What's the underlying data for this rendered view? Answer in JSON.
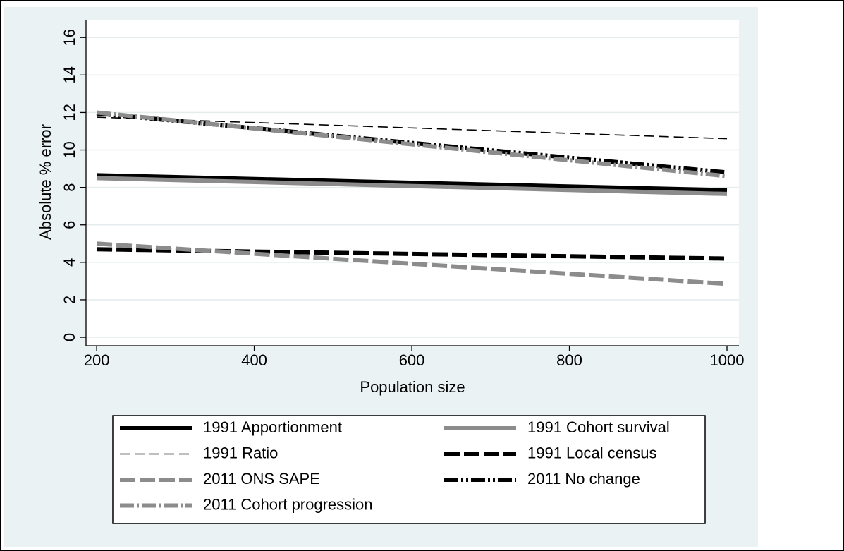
{
  "chart_data": {
    "type": "line",
    "x_label": "Population size",
    "y_label": "Absolute % error",
    "x": [
      200,
      1000
    ],
    "xlim": [
      186.5,
      1015.2
    ],
    "xticks": [
      200,
      400,
      600,
      800,
      1000
    ],
    "ylim": [
      -0.45,
      16.95
    ],
    "yticks": [
      0,
      2,
      4,
      6,
      8,
      10,
      12,
      14,
      16
    ],
    "grid": true,
    "legend": "bottom",
    "series": [
      {
        "name": "1991 Apportionment",
        "color": "#000000",
        "dash": "solid",
        "width": "thick",
        "values": [
          8.65,
          7.85
        ]
      },
      {
        "name": "1991 Cohort survival",
        "color": "#8c8c8c",
        "dash": "solid",
        "width": "thick",
        "values": [
          8.5,
          7.65
        ]
      },
      {
        "name": "1991 Ratio",
        "color": "#000000",
        "dash": "dash",
        "width": "thin",
        "values": [
          11.75,
          10.6
        ]
      },
      {
        "name": "1991 Local census",
        "color": "#000000",
        "dash": "longdash",
        "width": "thick",
        "values": [
          4.7,
          4.2
        ]
      },
      {
        "name": "2011 ONS SAPE",
        "color": "#8c8c8c",
        "dash": "longdash",
        "width": "thick",
        "values": [
          5.0,
          2.85
        ]
      },
      {
        "name": "2011 No change",
        "color": "#000000",
        "dash": "longdash-dot-dot",
        "width": "thick",
        "values": [
          11.95,
          8.8
        ]
      },
      {
        "name": "2011 Cohort progression",
        "color": "#8c8c8c",
        "dash": "longdash-dot",
        "width": "thick",
        "values": [
          12.0,
          8.6
        ]
      }
    ]
  }
}
